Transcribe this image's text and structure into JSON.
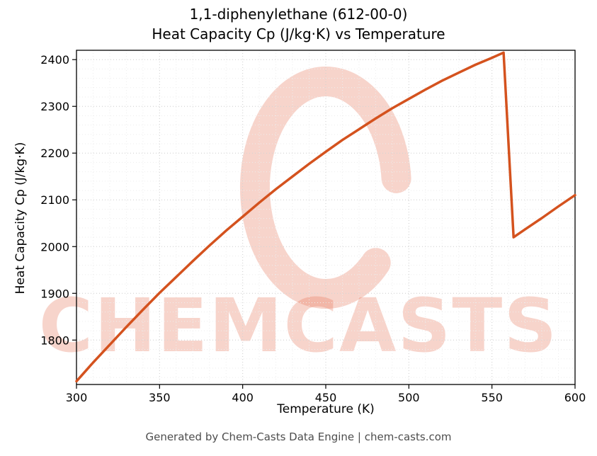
{
  "chart_data": {
    "type": "line",
    "title": "1,1-diphenylethane (612-00-0)",
    "subtitle": "Heat Capacity Cp (J/kg·K) vs Temperature",
    "xlabel": "Temperature (K)",
    "ylabel": "Heat Capacity Cp (J/kg·K)",
    "xlim": [
      300,
      600
    ],
    "ylim": [
      1705,
      2420
    ],
    "x_ticks": [
      300,
      350,
      400,
      450,
      500,
      550,
      600
    ],
    "y_ticks": [
      1800,
      1900,
      2000,
      2100,
      2200,
      2300,
      2400
    ],
    "minor_x": 10,
    "minor_y": 20,
    "grid_style": "dotted",
    "line_color": "#d4521e",
    "series": [
      {
        "name": "Heat Capacity Cp",
        "points": [
          [
            300,
            1712
          ],
          [
            310,
            1752
          ],
          [
            320,
            1790
          ],
          [
            330,
            1828
          ],
          [
            340,
            1865
          ],
          [
            350,
            1901
          ],
          [
            360,
            1935
          ],
          [
            370,
            1969
          ],
          [
            380,
            2002
          ],
          [
            390,
            2034
          ],
          [
            400,
            2064
          ],
          [
            410,
            2094
          ],
          [
            420,
            2123
          ],
          [
            430,
            2150
          ],
          [
            440,
            2177
          ],
          [
            450,
            2203
          ],
          [
            460,
            2228
          ],
          [
            470,
            2251
          ],
          [
            480,
            2274
          ],
          [
            490,
            2296
          ],
          [
            500,
            2316
          ],
          [
            510,
            2336
          ],
          [
            520,
            2355
          ],
          [
            530,
            2372
          ],
          [
            540,
            2389
          ],
          [
            550,
            2404
          ],
          [
            557,
            2415
          ],
          [
            563,
            2020
          ],
          [
            570,
            2037
          ],
          [
            580,
            2061
          ],
          [
            590,
            2086
          ],
          [
            600,
            2110
          ]
        ]
      }
    ],
    "annotations": {
      "discontinuity": "sharp drop from Cp 2415 at T 557 K to Cp 2020 at T 563 K"
    },
    "watermark": {
      "text": "CHEMCASTS",
      "color": "#e77257"
    }
  },
  "footer": {
    "text": "Generated by Chem-Casts Data Engine | chem-casts.com"
  }
}
